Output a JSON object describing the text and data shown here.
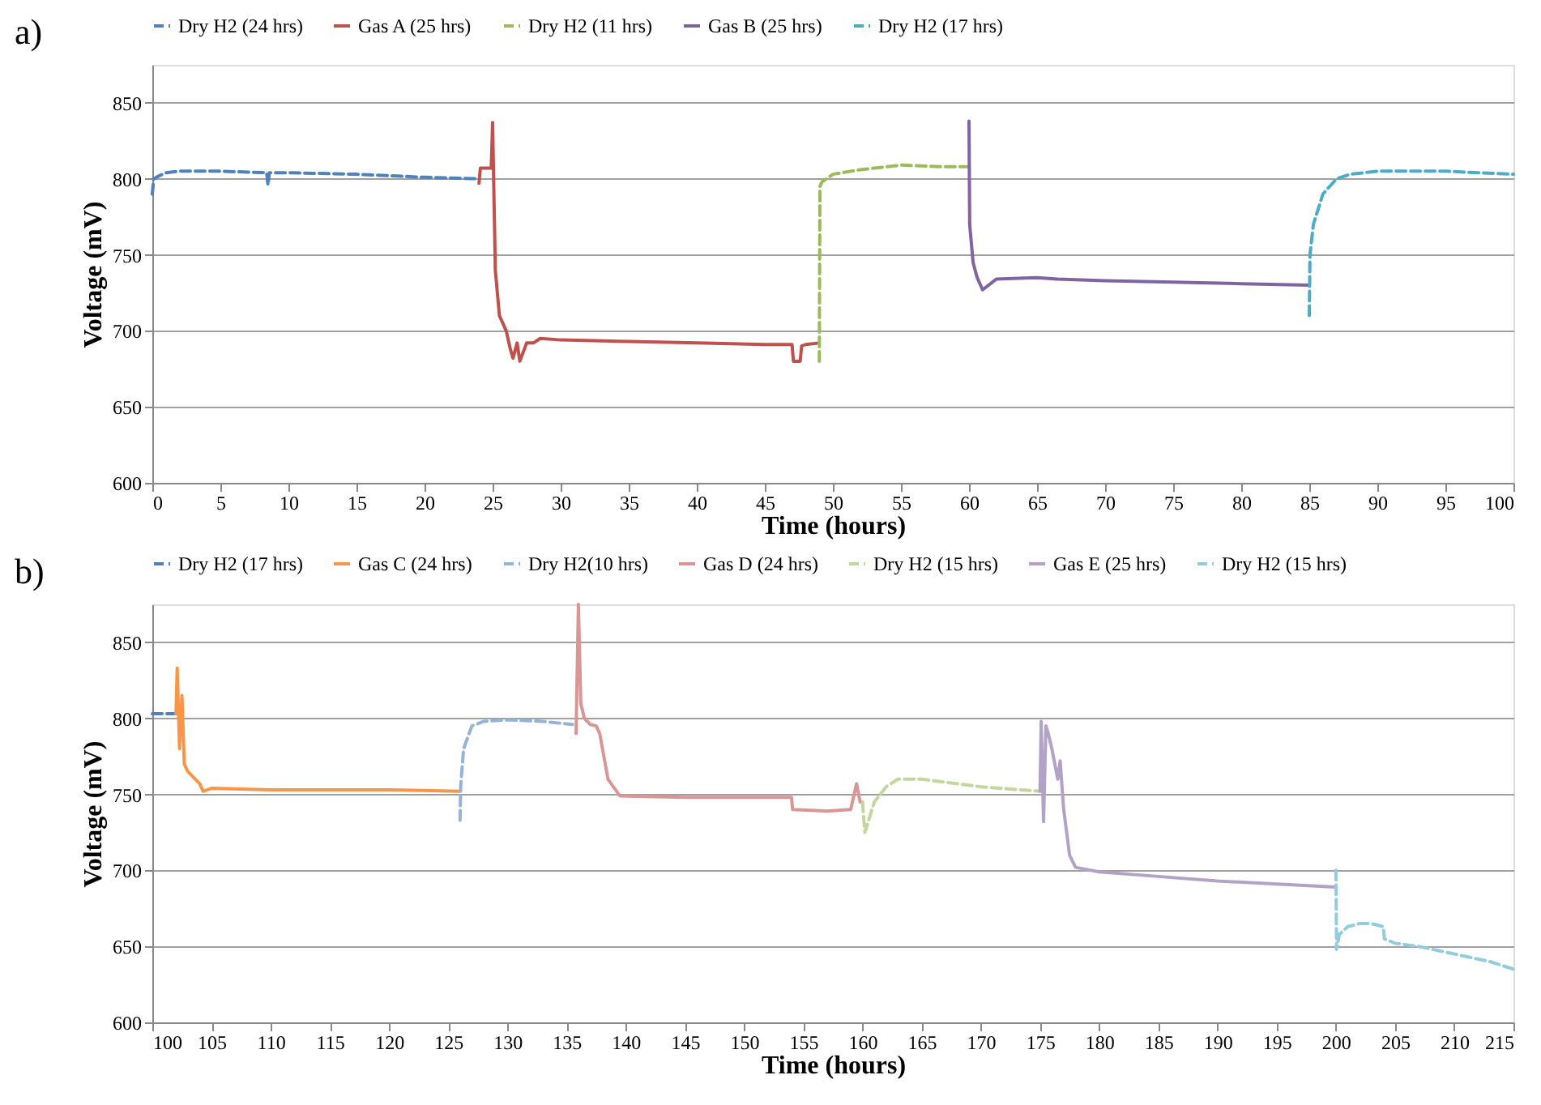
{
  "chart_data": [
    {
      "type": "line",
      "xlabel": "Time (hours)",
      "ylabel": "Voltage (mV)",
      "annotations": [
        "a)"
      ],
      "xlim": [
        0,
        100
      ],
      "xticks": [
        0,
        5,
        10,
        15,
        20,
        25,
        30,
        35,
        40,
        45,
        50,
        55,
        60,
        65,
        70,
        75,
        80,
        85,
        90,
        95,
        100
      ],
      "ylim": [
        600,
        875
      ],
      "yticks": [
        600,
        650,
        700,
        750,
        800,
        850
      ],
      "grid": "y",
      "legend": "top",
      "series": [
        {
          "name": "Dry H2 (24 hrs)",
          "color": "#4f81bd",
          "line_style": "dashed",
          "x": [
            0,
            0.1,
            0.5,
            1,
            2,
            3,
            5,
            8.4,
            8.5,
            8.6,
            10,
            15,
            20,
            24
          ],
          "values": [
            790,
            800,
            802,
            804,
            805,
            805,
            805,
            804,
            796,
            804,
            804,
            803,
            801,
            800
          ]
        },
        {
          "name": "Gas A (25 hrs)",
          "color": "#c0504d",
          "line_style": "solid",
          "x": [
            24,
            24.1,
            24.9,
            25,
            25.2,
            25.5,
            26,
            26.3,
            26.5,
            26.8,
            27,
            27.5,
            28,
            28.5,
            30,
            35,
            40,
            45,
            47,
            47.1,
            47.6,
            47.7,
            48,
            49
          ],
          "values": [
            797,
            807,
            807,
            837,
            740,
            710,
            700,
            688,
            682,
            692,
            680,
            692,
            692,
            695,
            694,
            693,
            692,
            691,
            691,
            680,
            680,
            690,
            691,
            692
          ]
        },
        {
          "name": "Dry H2 (11 hrs)",
          "color": "#9bbb59",
          "line_style": "dashed",
          "x": [
            49,
            49.05,
            49.2,
            50,
            52,
            55,
            58,
            60
          ],
          "values": [
            680,
            795,
            798,
            803,
            806,
            809,
            808,
            808
          ]
        },
        {
          "name": "Gas B (25 hrs)",
          "color": "#8064a2",
          "line_style": "solid",
          "x": [
            60,
            60.05,
            60.3,
            60.6,
            61,
            62,
            65,
            66.5,
            70,
            75,
            80,
            85
          ],
          "values": [
            838,
            770,
            745,
            735,
            727,
            734,
            735,
            734,
            733,
            732,
            731,
            730
          ]
        },
        {
          "name": "Dry H2 (17 hrs)",
          "color": "#4bacc6",
          "line_style": "dashed",
          "x": [
            85,
            85.05,
            85.3,
            86,
            87,
            88,
            90,
            95,
            100
          ],
          "values": [
            710,
            750,
            770,
            790,
            800,
            803,
            805,
            805,
            803
          ]
        }
      ]
    },
    {
      "type": "line",
      "xlabel": "Time (hours)",
      "ylabel": "Voltage (mV)",
      "annotations": [
        "b)"
      ],
      "xlim": [
        100,
        215
      ],
      "xticks": [
        100,
        105,
        110,
        115,
        120,
        125,
        130,
        135,
        140,
        145,
        150,
        155,
        160,
        165,
        170,
        175,
        180,
        185,
        190,
        195,
        200,
        205,
        210,
        215
      ],
      "ylim": [
        600,
        875
      ],
      "yticks": [
        600,
        650,
        700,
        750,
        800,
        850
      ],
      "grid": "y",
      "legend": "top",
      "series": [
        {
          "name": "Dry H2 (17 hrs)",
          "color": "#4f81bd",
          "line_style": "dashed",
          "x": [
            100,
            102
          ],
          "values": [
            803,
            803
          ]
        },
        {
          "name": "Gas C (24 hrs)",
          "color": "#f79646",
          "line_style": "solid",
          "x": [
            102,
            102.1,
            102.3,
            102.5,
            102.7,
            103,
            104,
            104.3,
            105,
            110,
            120,
            126
          ],
          "values": [
            803,
            833,
            780,
            815,
            770,
            765,
            757,
            752,
            754,
            753,
            753,
            752
          ]
        },
        {
          "name": "Dry H2(10 hrs)",
          "color": "#95b3d7",
          "line_style": "dashed",
          "x": [
            126,
            126.05,
            126.3,
            127,
            128,
            130,
            133,
            135.5
          ],
          "values": [
            733,
            755,
            780,
            795,
            798,
            799,
            798,
            796
          ]
        },
        {
          "name": "Gas D (24 hrs)",
          "color": "#d99694",
          "line_style": "solid",
          "x": [
            135.8,
            136,
            136.2,
            136.5,
            137,
            137.5,
            137.8,
            138.5,
            139.5,
            145,
            150,
            154,
            154.1,
            157,
            159,
            159.5,
            159.8,
            160
          ],
          "values": [
            790,
            875,
            810,
            800,
            796,
            795,
            790,
            760,
            749,
            748,
            748,
            748,
            740,
            739,
            740,
            757,
            745,
            745
          ]
        },
        {
          "name": "Dry H2 (15 hrs)",
          "color": "#c3d69b",
          "line_style": "dashed",
          "x": [
            160,
            160.2,
            161,
            162,
            163,
            165,
            170,
            175
          ],
          "values": [
            745,
            725,
            745,
            755,
            760,
            760,
            755,
            752
          ]
        },
        {
          "name": "Gas E (25 hrs)",
          "color": "#b3a2c7",
          "line_style": "solid",
          "x": [
            175,
            175.1,
            175.3,
            175.5,
            175.7,
            176,
            176.5,
            176.7,
            177,
            177.5,
            178,
            180,
            185,
            190,
            195,
            200
          ],
          "values": [
            752,
            798,
            732,
            795,
            790,
            780,
            760,
            772,
            740,
            710,
            702,
            699,
            696,
            693,
            691,
            689
          ]
        },
        {
          "name": "Dry H2 (15 hrs)",
          "color": "#93cddd",
          "line_style": "dashed",
          "x": [
            200,
            200.05,
            200.3,
            201,
            202,
            203,
            204,
            204.1,
            205,
            207,
            210,
            213,
            215
          ],
          "values": [
            700,
            648,
            658,
            663,
            665,
            665,
            663,
            655,
            652,
            650,
            645,
            640,
            635
          ]
        }
      ]
    }
  ]
}
